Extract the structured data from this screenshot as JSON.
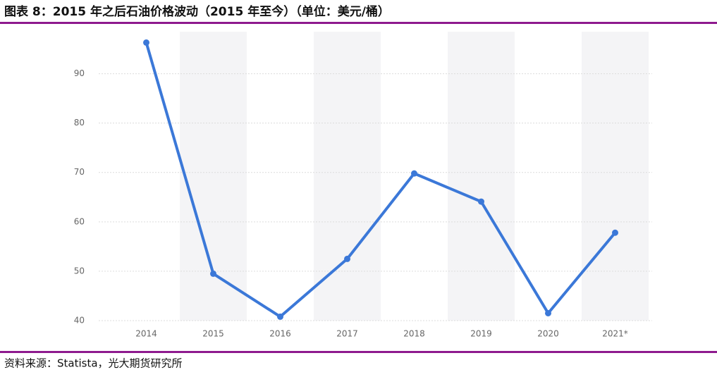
{
  "chart_data": {
    "type": "line",
    "title": "图表 8：2015 年之后石油价格波动（2015 年至今）（单位：美元/桶）",
    "source": "资料来源：Statista，光大期货研究所",
    "categories": [
      "2014",
      "2015",
      "2016",
      "2017",
      "2018",
      "2019",
      "2020",
      "2021*"
    ],
    "values": [
      96.3,
      49.5,
      40.8,
      52.5,
      69.8,
      64.1,
      41.5,
      57.8
    ],
    "color": "#3b78d8",
    "ylim": [
      40,
      98.5
    ],
    "yticks": [
      40,
      50,
      60,
      70,
      80,
      90
    ],
    "grid": true
  }
}
